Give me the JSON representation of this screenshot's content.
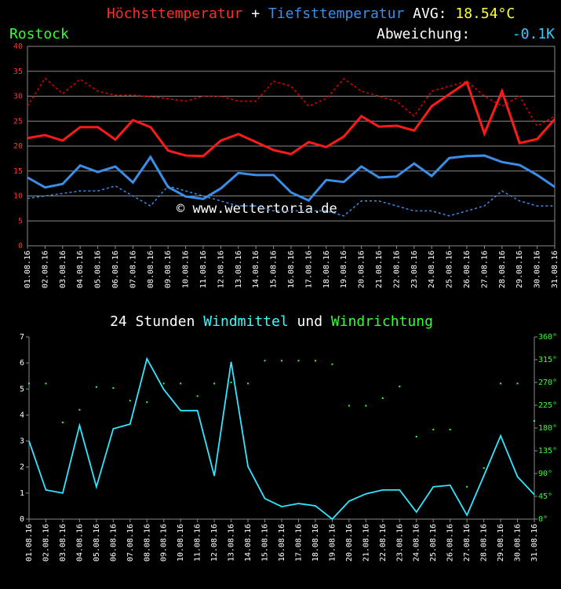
{
  "chart_data": [
    {
      "type": "line",
      "title_separator": "+",
      "avg_label": "AVG:",
      "avg_value": "18.54°C",
      "location": "Rostock",
      "deviation_label": "Abweichung:",
      "deviation_value": "-0.1K",
      "watermark": "© www.wettertoria.de",
      "categories": [
        "01.08.16",
        "02.08.16",
        "03.08.16",
        "04.08.16",
        "05.08.16",
        "06.08.16",
        "07.08.16",
        "08.08.16",
        "09.08.16",
        "10.08.16",
        "11.08.16",
        "12.08.16",
        "13.08.16",
        "14.08.16",
        "15.08.16",
        "16.08.16",
        "17.08.16",
        "18.08.16",
        "19.08.16",
        "20.08.16",
        "21.08.16",
        "22.08.16",
        "23.08.16",
        "24.08.16",
        "25.08.16",
        "26.08.16",
        "27.08.16",
        "28.08.16",
        "29.08.16",
        "30.08.16",
        "31.08.16"
      ],
      "series": [
        {
          "name": "Höchsttemperatur",
          "color": "#ff1a1a",
          "values": [
            21.6,
            22.2,
            21.1,
            23.8,
            23.8,
            21.3,
            25.2,
            23.8,
            19.1,
            18.1,
            18.0,
            21.1,
            22.4,
            20.8,
            19.2,
            18.4,
            20.8,
            19.8,
            21.9,
            26.0,
            23.9,
            24.1,
            23.1,
            28.0,
            30.4,
            32.8,
            22.5,
            31.0,
            20.6,
            21.4,
            25.4
          ]
        },
        {
          "name": "Tiefsttemperatur",
          "color": "#3a8ee6",
          "values": [
            13.7,
            11.7,
            12.4,
            16.1,
            14.8,
            15.9,
            12.7,
            17.8,
            11.8,
            9.9,
            9.4,
            11.5,
            14.6,
            14.2,
            14.2,
            10.7,
            9.1,
            13.2,
            12.8,
            15.9,
            13.7,
            13.9,
            16.5,
            14.0,
            17.6,
            18.0,
            18.1,
            16.8,
            16.2,
            14.2,
            11.8
          ]
        },
        {
          "color": "#e00000",
          "dashed": true,
          "values": [
            28,
            33.6,
            30.5,
            33.4,
            31,
            30.2,
            30.2,
            29.9,
            29.5,
            29,
            30,
            30,
            29,
            29,
            33,
            32,
            28,
            29.5,
            33.5,
            31,
            30,
            29,
            26,
            31,
            32,
            33,
            30,
            28,
            30,
            24,
            26
          ]
        },
        {
          "color": "#3a8ee6",
          "dashed": true,
          "values": [
            9.5,
            10,
            10.5,
            11,
            11,
            12,
            10,
            8,
            12,
            11,
            10,
            9,
            8,
            8,
            7,
            7,
            7,
            7,
            6,
            9,
            9,
            8,
            7,
            7,
            6,
            7,
            8,
            11,
            9,
            8,
            8
          ]
        }
      ],
      "ylim": [
        0,
        40
      ],
      "yticks": [
        0,
        5,
        10,
        15,
        20,
        25,
        30,
        35,
        40
      ],
      "grid": true,
      "ytick_color": "#ff3333"
    },
    {
      "type": "line",
      "title_prefix": "24 Stunden",
      "title_joiner": "und",
      "categories": [
        "01.08.16",
        "02.08.16",
        "03.08.16",
        "04.08.16",
        "05.08.16",
        "06.08.16",
        "07.08.16",
        "08.08.16",
        "09.08.16",
        "10.08.16",
        "11.08.16",
        "12.08.16",
        "13.08.16",
        "14.08.16",
        "15.08.16",
        "16.08.16",
        "17.08.16",
        "18.08.16",
        "19.08.16",
        "20.08.16",
        "21.08.16",
        "22.08.16",
        "23.08.16",
        "24.08.16",
        "25.08.16",
        "26.08.16",
        "27.08.16",
        "28.08.16",
        "29.08.16",
        "30.08.16",
        "31.08.16"
      ],
      "series": [
        {
          "name": "Windmittel",
          "color": "#33e6ff",
          "values": [
            3.0,
            1.12,
            1.0,
            3.6,
            1.24,
            3.47,
            3.65,
            6.16,
            4.98,
            4.17,
            4.17,
            1.66,
            6.04,
            2.02,
            0.79,
            0.48,
            0.6,
            0.51,
            0,
            0.69,
            0.97,
            1.12,
            1.12,
            0.27,
            1.24,
            1.3,
            0.15,
            1.66,
            3.2,
            1.63,
            0.94
          ]
        },
        {
          "name": "Windrichtung",
          "color": "#33ff33",
          "axis": "y2",
          "dots": true,
          "values": [
            268,
            268,
            191,
            216,
            261,
            259,
            234,
            231,
            268,
            268,
            243,
            268,
            270,
            268,
            313,
            313,
            313,
            313,
            306,
            224,
            224,
            239,
            262,
            163,
            177,
            177,
            64,
            101,
            268,
            268,
            194
          ]
        }
      ],
      "ylim": [
        0,
        7
      ],
      "yticks": [
        0,
        1,
        2,
        3,
        4,
        5,
        6,
        7
      ],
      "grid": false,
      "ytick_color": "#ffffff",
      "y2lim": [
        0,
        360
      ],
      "y2ticks": [
        {
          "value": 0,
          "label": "0°"
        },
        {
          "value": 45,
          "label": "45°"
        },
        {
          "value": 90,
          "label": "90°"
        },
        {
          "value": 135,
          "label": "135°"
        },
        {
          "value": 180,
          "label": "180°"
        },
        {
          "value": 225,
          "label": "225°"
        },
        {
          "value": 270,
          "label": "270°"
        },
        {
          "value": 315,
          "label": "315°"
        },
        {
          "value": 360,
          "label": "360°"
        }
      ]
    }
  ]
}
